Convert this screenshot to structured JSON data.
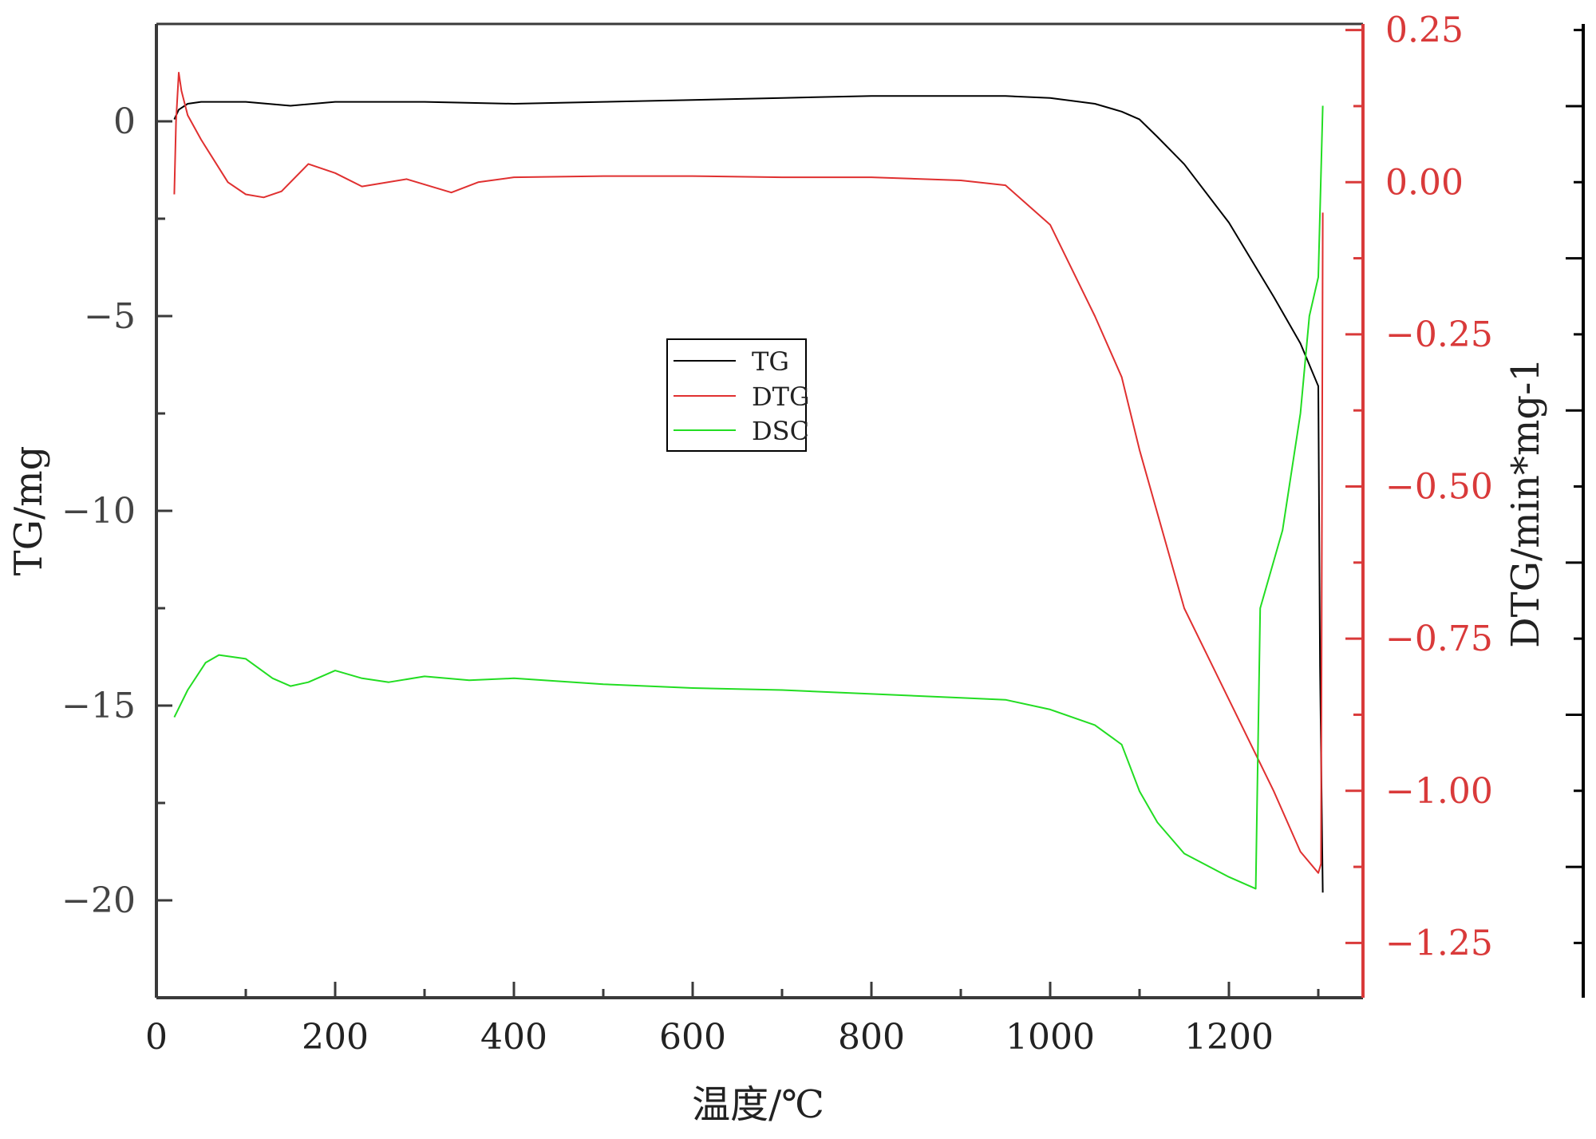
{
  "chart_data": {
    "type": "line",
    "xlabel": "温度/℃",
    "ylabel_left": "TG/mg",
    "ylabel_right": "DTG/min*mg-1",
    "xlim": [
      0,
      1350
    ],
    "x_ticks": [
      "0",
      "200",
      "400",
      "600",
      "800",
      "1000",
      "1200"
    ],
    "x_tick_values": [
      0,
      200,
      400,
      600,
      800,
      1000,
      1200
    ],
    "ylim_left": [
      -22.5,
      2.5
    ],
    "y_left_ticks": [
      "0",
      "−5",
      "−10",
      "−15",
      "−20"
    ],
    "y_left_tick_values": [
      0,
      -5,
      -10,
      -15,
      -20
    ],
    "ylim_right": [
      -1.34,
      0.26
    ],
    "y_right_ticks": [
      "0.25",
      "0.00",
      "−0.25",
      "−0.50",
      "−0.75",
      "−1.00",
      "−1.25"
    ],
    "y_right_tick_values": [
      0.25,
      0,
      -0.25,
      -0.5,
      -0.75,
      -1.0,
      -1.25
    ],
    "grid": false,
    "legend_position": "center",
    "colors": {
      "TG": "#000000",
      "DTG": "#e03030",
      "DSC": "#22dd22",
      "right_axis": "#d93a3a"
    },
    "series": [
      {
        "name": "TG",
        "axis": "left",
        "x": [
          20,
          25,
          35,
          50,
          100,
          150,
          200,
          300,
          400,
          500,
          600,
          700,
          800,
          900,
          950,
          1000,
          1050,
          1080,
          1100,
          1120,
          1150,
          1200,
          1250,
          1280,
          1300,
          1302,
          1305
        ],
        "y": [
          0.05,
          0.3,
          0.45,
          0.5,
          0.5,
          0.4,
          0.5,
          0.5,
          0.45,
          0.5,
          0.55,
          0.6,
          0.65,
          0.65,
          0.65,
          0.6,
          0.45,
          0.25,
          0.05,
          -0.4,
          -1.1,
          -2.6,
          -4.5,
          -5.7,
          -6.8,
          -14.0,
          -19.8
        ]
      },
      {
        "name": "DTG",
        "axis": "right",
        "x": [
          20,
          22,
          25,
          28,
          35,
          50,
          80,
          100,
          120,
          140,
          170,
          200,
          230,
          280,
          330,
          360,
          400,
          500,
          600,
          700,
          800,
          900,
          950,
          1000,
          1050,
          1080,
          1100,
          1150,
          1200,
          1250,
          1280,
          1300,
          1303,
          1305
        ],
        "y": [
          -0.02,
          0.1,
          0.18,
          0.15,
          0.11,
          0.07,
          0.0,
          -0.02,
          -0.025,
          -0.015,
          0.03,
          0.015,
          -0.007,
          0.005,
          -0.017,
          0.0,
          0.008,
          0.01,
          0.01,
          0.008,
          0.008,
          0.003,
          -0.005,
          -0.07,
          -0.22,
          -0.32,
          -0.44,
          -0.7,
          -0.85,
          -1.0,
          -1.1,
          -1.135,
          -1.12,
          -0.05
        ]
      },
      {
        "name": "DSC",
        "axis": "left",
        "x": [
          20,
          35,
          55,
          70,
          100,
          130,
          150,
          170,
          200,
          230,
          260,
          300,
          350,
          400,
          500,
          600,
          700,
          800,
          900,
          950,
          1000,
          1050,
          1080,
          1100,
          1120,
          1150,
          1200,
          1230,
          1235,
          1260,
          1280,
          1290,
          1300,
          1305
        ],
        "y": [
          -15.3,
          -14.6,
          -13.9,
          -13.7,
          -13.8,
          -14.3,
          -14.5,
          -14.4,
          -14.1,
          -14.3,
          -14.4,
          -14.25,
          -14.35,
          -14.3,
          -14.45,
          -14.55,
          -14.6,
          -14.7,
          -14.8,
          -14.85,
          -15.1,
          -15.5,
          -16.0,
          -17.2,
          -18.0,
          -18.8,
          -19.4,
          -19.7,
          -12.5,
          -10.5,
          -7.5,
          -5.0,
          -4.0,
          0.4
        ]
      }
    ]
  }
}
